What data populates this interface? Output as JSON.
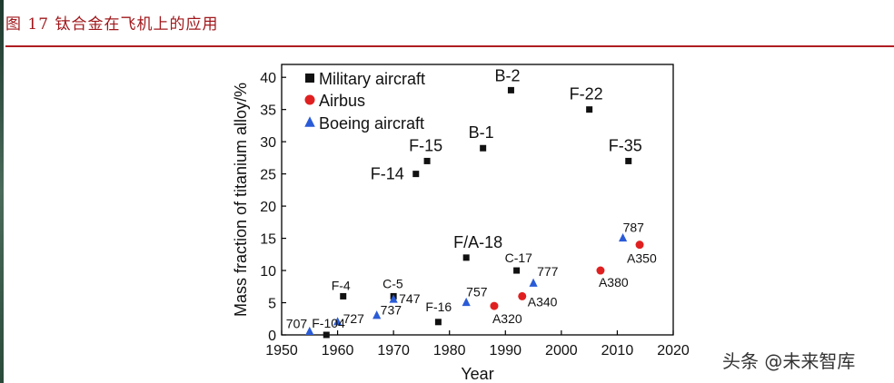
{
  "figure": {
    "caption": "图 17  钛合金在飞机上的应用",
    "watermark": "头条 @未来智库"
  },
  "colors": {
    "caption": "#a0181c",
    "military": "#111111",
    "airbus": "#e02020",
    "boeing": "#2a5bd7"
  },
  "chart_data": {
    "type": "scatter",
    "title": "",
    "xlabel": "Year",
    "ylabel": "Mass fraction of titanium alloy/%",
    "xlim": [
      1950,
      2020
    ],
    "ylim": [
      0,
      42
    ],
    "xticks": [
      "1950",
      "1960",
      "1970",
      "1980",
      "1990",
      "2000",
      "2010",
      "2020"
    ],
    "yticks": [
      "0",
      "5",
      "10",
      "15",
      "20",
      "25",
      "30",
      "35",
      "40"
    ],
    "legend_position": "top-left",
    "series": [
      {
        "name": "Military aircraft",
        "marker": "square",
        "points": [
          {
            "label": "F-4",
            "x": 1961,
            "y": 6
          },
          {
            "label": "C-5",
            "x": 1970,
            "y": 6
          },
          {
            "label": "F-104",
            "x": 1958,
            "y": 0
          },
          {
            "label": "F-16",
            "x": 1978,
            "y": 2
          },
          {
            "label": "F-14",
            "x": 1974,
            "y": 25
          },
          {
            "label": "F-15",
            "x": 1976,
            "y": 27
          },
          {
            "label": "F/A-18",
            "x": 1983,
            "y": 12
          },
          {
            "label": "B-1",
            "x": 1986,
            "y": 29
          },
          {
            "label": "B-2",
            "x": 1991,
            "y": 38
          },
          {
            "label": "C-17",
            "x": 1992,
            "y": 10
          },
          {
            "label": "F-22",
            "x": 2005,
            "y": 35
          },
          {
            "label": "F-35",
            "x": 2012,
            "y": 27
          }
        ]
      },
      {
        "name": "Airbus",
        "marker": "circle",
        "points": [
          {
            "label": "A320",
            "x": 1988,
            "y": 4.5
          },
          {
            "label": "A340",
            "x": 1993,
            "y": 6
          },
          {
            "label": "A380",
            "x": 2007,
            "y": 10
          },
          {
            "label": "A350",
            "x": 2014,
            "y": 14
          }
        ]
      },
      {
        "name": "Boeing aircraft",
        "marker": "triangle",
        "points": [
          {
            "label": "707",
            "x": 1955,
            "y": 0.5
          },
          {
            "label": "727",
            "x": 1960,
            "y": 2
          },
          {
            "label": "737",
            "x": 1967,
            "y": 3
          },
          {
            "label": "747",
            "x": 1970,
            "y": 5.5
          },
          {
            "label": "757",
            "x": 1983,
            "y": 5
          },
          {
            "label": "777",
            "x": 1995,
            "y": 8
          },
          {
            "label": "787",
            "x": 2011,
            "y": 15
          }
        ]
      }
    ]
  }
}
